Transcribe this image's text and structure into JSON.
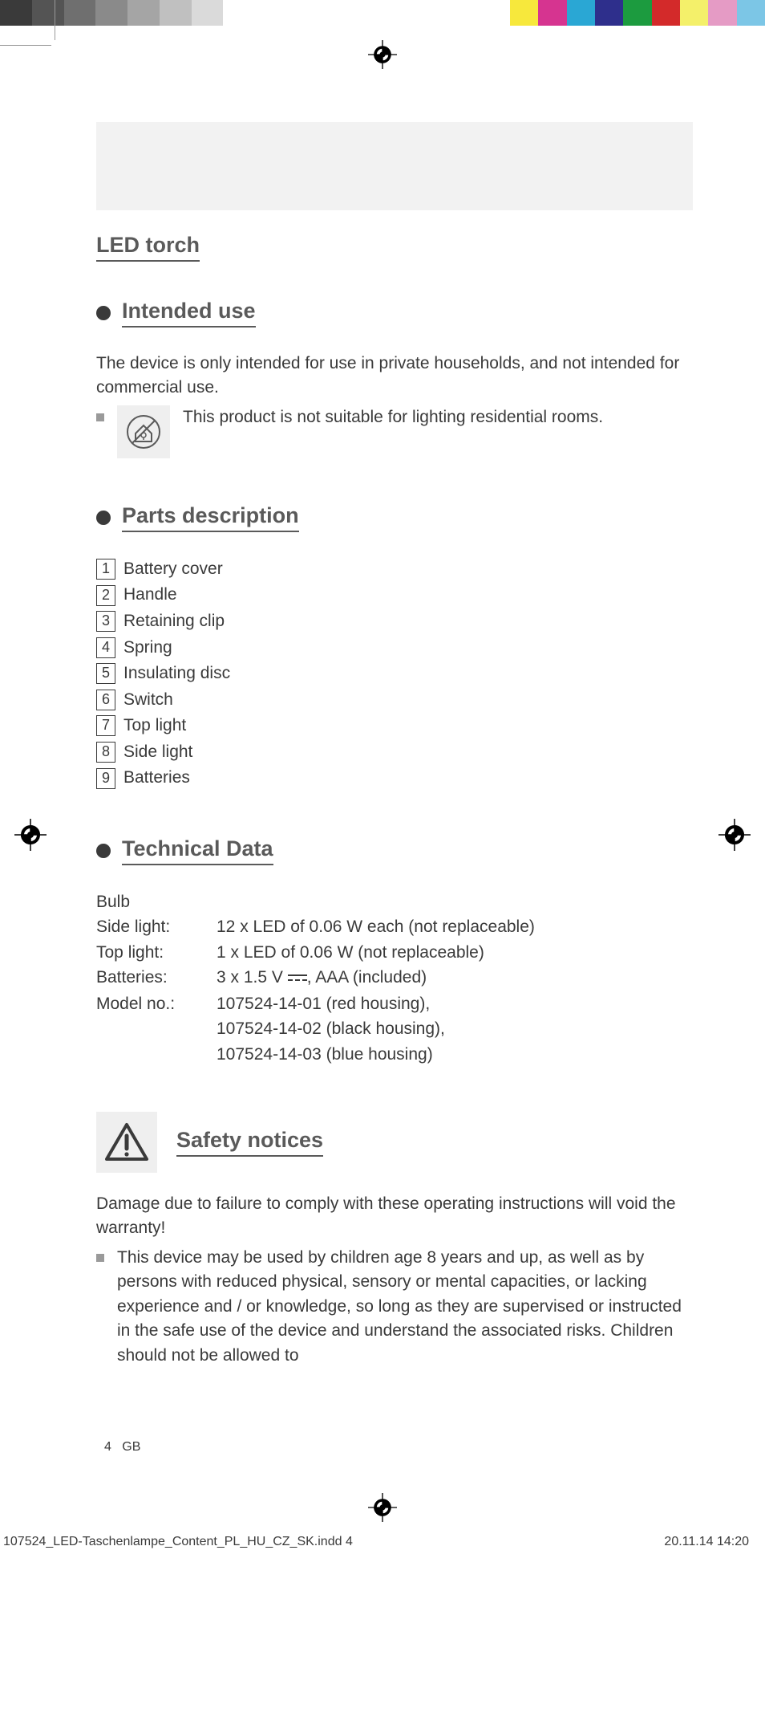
{
  "color_bar": {
    "left": [
      "#3a3a3a",
      "#545454",
      "#6f6f6f",
      "#8a8a8a",
      "#a5a5a5",
      "#c0c0c0",
      "#dadada",
      "#ffffff"
    ],
    "right": [
      "#f7e83c",
      "#d63490",
      "#2aa7d4",
      "#2e2f8c",
      "#1c9b3f",
      "#d32a2a",
      "#f4f06a",
      "#e59bc5",
      "#7cc6e6"
    ]
  },
  "doc": {
    "main_title": "LED torch",
    "intended": {
      "title": "Intended use",
      "para": "The device is only intended for use in private households, and not intended for commercial use.",
      "note": "This product is not suitable for lighting residential rooms."
    },
    "parts": {
      "title": "Parts description",
      "items": [
        "Battery cover",
        "Handle",
        "Retaining clip",
        "Spring",
        "Insulating disc",
        "Switch",
        "Top light",
        "Side light",
        "Batteries"
      ]
    },
    "tech": {
      "title": "Technical Data",
      "bulb_label": "Bulb",
      "rows": [
        {
          "label": "Side light:",
          "value": "12 x LED of 0.06 W each (not replaceable)"
        },
        {
          "label": "Top light:",
          "value": "1 x LED of 0.06 W (not replaceable)"
        }
      ],
      "batteries_label": "Batteries:",
      "batteries_prefix": "3 x 1.5 V ",
      "batteries_suffix": ", AAA (included)",
      "model_label": "Model no.:",
      "models": [
        "107524-14-01 (red housing),",
        "107524-14-02 (black housing),",
        "107524-14-03 (blue housing)"
      ]
    },
    "safety": {
      "title": "Safety notices",
      "para": "Damage due to failure to comply with these operating instructions will void the warranty!",
      "bullet": "This device may be used by children age 8 years and up, as well as by persons with reduced physical, sensory or mental capacities, or lacking experience and / or knowledge, so long as they are supervised or instructed in the safe use of the device and understand the associated risks. Children should not be allowed to"
    },
    "page_num": "4",
    "page_lang": "GB",
    "footer_file": "107524_LED-Taschenlampe_Content_PL_HU_CZ_SK.indd   4",
    "footer_date": "20.11.14   14:20"
  }
}
